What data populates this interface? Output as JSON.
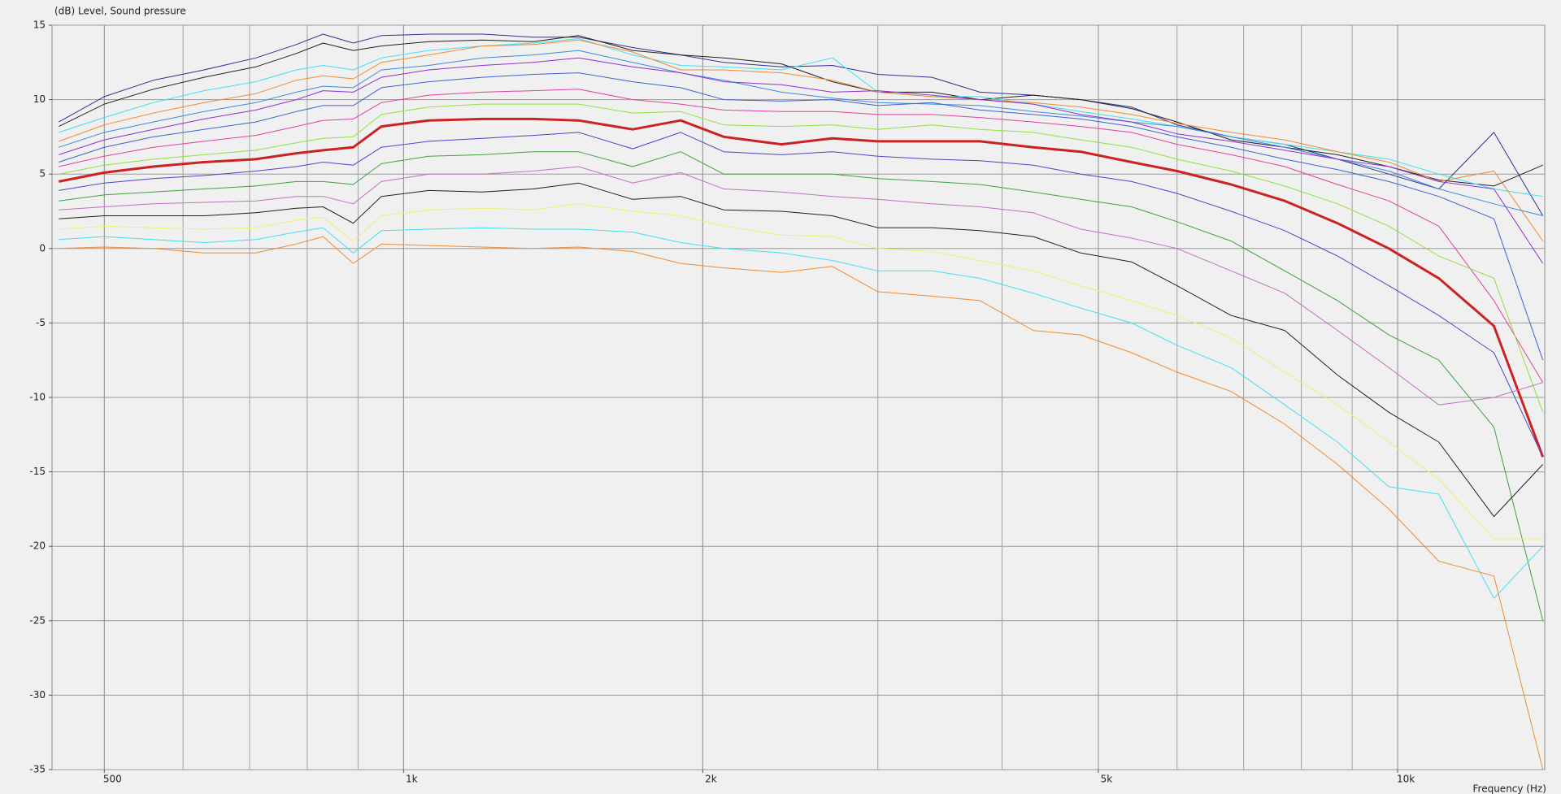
{
  "chart_data": {
    "type": "line",
    "title": "(dB)  Level, Sound pressure",
    "x_label": "Frequency  (Hz)",
    "x_scale": "log",
    "grid": true,
    "xlim": [
      443,
      14060
    ],
    "ylim": [
      -35,
      15
    ],
    "xticks": [
      500,
      {
        "value": 1000,
        "label": "1k"
      },
      {
        "value": 2000,
        "label": "2k"
      },
      {
        "value": 5000,
        "label": "5k"
      },
      {
        "value": 10000,
        "label": "10k"
      }
    ],
    "xminor": [
      600,
      700,
      800,
      900,
      3000,
      4000,
      6000,
      7000,
      8000,
      9000
    ],
    "yticks": [
      15,
      10,
      5,
      0,
      -5,
      -10,
      -15,
      -20,
      -25,
      -30,
      -35
    ],
    "x": [
      450,
      500,
      560,
      630,
      710,
      780,
      830,
      890,
      950,
      1060,
      1200,
      1350,
      1500,
      1700,
      1900,
      2100,
      2400,
      2700,
      3000,
      3400,
      3800,
      4300,
      4800,
      5400,
      6000,
      6800,
      7700,
      8700,
      9800,
      11000,
      12500,
      14000
    ],
    "series": [
      {
        "color": "#303090",
        "width": 1,
        "values": [
          8.5,
          10.2,
          11.3,
          12.0,
          12.8,
          13.7,
          14.4,
          13.8,
          14.3,
          14.4,
          14.4,
          14.2,
          14.2,
          13.5,
          13.0,
          12.5,
          12.2,
          12.3,
          11.7,
          11.5,
          10.5,
          10.3,
          10.0,
          9.5,
          8.3,
          7.5,
          7.0,
          6.0,
          5.0,
          4.0,
          7.8,
          2.2
        ]
      },
      {
        "color": "#202020",
        "width": 1,
        "values": [
          8.2,
          9.7,
          10.7,
          11.5,
          12.2,
          13.1,
          13.8,
          13.3,
          13.6,
          13.9,
          14.0,
          13.9,
          14.3,
          13.3,
          13.0,
          12.8,
          12.4,
          11.2,
          10.5,
          10.5,
          10.0,
          10.3,
          10.0,
          9.4,
          8.5,
          7.3,
          6.8,
          6.3,
          5.5,
          4.6,
          4.2,
          5.6
        ]
      },
      {
        "color": "#40e0f0",
        "width": 1,
        "values": [
          7.8,
          8.8,
          9.8,
          10.6,
          11.2,
          12.0,
          12.3,
          12.0,
          12.8,
          13.3,
          13.6,
          13.8,
          14.1,
          13.0,
          12.3,
          12.2,
          12.0,
          12.8,
          10.5,
          10.2,
          10.2,
          9.7,
          9.2,
          8.7,
          8.2,
          7.5,
          7.0,
          6.5,
          6.0,
          5.0,
          4.0,
          3.5
        ]
      },
      {
        "color": "#f08a30",
        "width": 1,
        "values": [
          7.2,
          8.3,
          9.1,
          9.8,
          10.4,
          11.3,
          11.6,
          11.4,
          12.5,
          13.0,
          13.6,
          13.7,
          14.0,
          13.2,
          12.0,
          12.0,
          11.8,
          11.3,
          10.5,
          10.2,
          10.0,
          9.8,
          9.5,
          9.0,
          8.4,
          7.8,
          7.3,
          6.5,
          5.8,
          4.5,
          5.2,
          0.5
        ]
      },
      {
        "color": "#3a8cd8",
        "width": 1,
        "values": [
          6.8,
          7.8,
          8.5,
          9.2,
          9.8,
          10.5,
          10.9,
          10.8,
          12.0,
          12.3,
          12.8,
          13.0,
          13.3,
          12.5,
          11.8,
          11.3,
          10.5,
          10.1,
          9.8,
          9.7,
          9.6,
          9.2,
          8.9,
          8.5,
          8.2,
          7.5,
          6.8,
          6.0,
          5.2,
          4.0,
          3.0,
          2.2
        ]
      },
      {
        "color": "#9030d0",
        "width": 1,
        "values": [
          6.3,
          7.3,
          8.0,
          8.7,
          9.3,
          10.0,
          10.6,
          10.5,
          11.5,
          12.0,
          12.3,
          12.5,
          12.8,
          12.2,
          11.8,
          11.2,
          11.0,
          10.5,
          10.6,
          10.3,
          10.0,
          9.7,
          9.0,
          8.5,
          7.7,
          7.2,
          6.6,
          6.0,
          5.5,
          4.5,
          4.0,
          -1
        ]
      },
      {
        "color": "#4060d0",
        "width": 1,
        "values": [
          5.8,
          6.8,
          7.5,
          8.0,
          8.5,
          9.2,
          9.6,
          9.6,
          10.8,
          11.2,
          11.5,
          11.7,
          11.8,
          11.2,
          10.8,
          10.0,
          9.9,
          10.0,
          9.6,
          9.8,
          9.3,
          9.0,
          8.7,
          8.2,
          7.5,
          6.8,
          6.0,
          5.3,
          4.5,
          3.5,
          2.0,
          -7.5
        ]
      },
      {
        "color": "#e040a0",
        "width": 1,
        "values": [
          5.5,
          6.2,
          6.8,
          7.2,
          7.6,
          8.2,
          8.6,
          8.7,
          9.8,
          10.3,
          10.5,
          10.6,
          10.7,
          10.0,
          9.7,
          9.3,
          9.2,
          9.2,
          9.0,
          9.0,
          8.8,
          8.5,
          8.2,
          7.8,
          7.0,
          6.3,
          5.5,
          4.3,
          3.2,
          1.5,
          -3.5,
          -9
        ]
      },
      {
        "color": "#90e040",
        "width": 1,
        "values": [
          5.0,
          5.6,
          6.0,
          6.3,
          6.6,
          7.1,
          7.4,
          7.5,
          9.0,
          9.5,
          9.7,
          9.7,
          9.7,
          9.1,
          9.2,
          8.3,
          8.2,
          8.3,
          8.0,
          8.3,
          8.0,
          7.8,
          7.3,
          6.8,
          6.0,
          5.2,
          4.2,
          3.0,
          1.5,
          -0.5,
          -2.0,
          -11
        ]
      },
      {
        "color": "#cc2222",
        "width": 3,
        "values": [
          4.5,
          5.1,
          5.5,
          5.8,
          6.0,
          6.4,
          6.6,
          6.8,
          8.2,
          8.6,
          8.7,
          8.7,
          8.6,
          8.0,
          8.6,
          7.5,
          7.0,
          7.4,
          7.2,
          7.2,
          7.2,
          6.8,
          6.5,
          5.8,
          5.2,
          4.3,
          3.2,
          1.7,
          0,
          -2,
          -5.2,
          -14
        ]
      },
      {
        "color": "#4848c8",
        "width": 1,
        "values": [
          3.9,
          4.4,
          4.7,
          4.9,
          5.2,
          5.5,
          5.8,
          5.6,
          6.8,
          7.2,
          7.4,
          7.6,
          7.8,
          6.7,
          7.8,
          6.5,
          6.3,
          6.5,
          6.2,
          6.0,
          5.9,
          5.6,
          5.0,
          4.5,
          3.7,
          2.5,
          1.2,
          -0.5,
          -2.5,
          -4.5,
          -7,
          -14
        ]
      },
      {
        "color": "#40a040",
        "width": 1,
        "values": [
          3.2,
          3.6,
          3.8,
          4.0,
          4.2,
          4.5,
          4.5,
          4.3,
          5.7,
          6.2,
          6.3,
          6.5,
          6.5,
          5.5,
          6.5,
          5.0,
          5.0,
          5.0,
          4.7,
          4.5,
          4.3,
          3.8,
          3.3,
          2.8,
          1.8,
          0.5,
          -1.5,
          -3.5,
          -5.8,
          -7.5,
          -12,
          -25
        ]
      },
      {
        "color": "#c070c0",
        "width": 1,
        "values": [
          2.6,
          2.8,
          3.0,
          3.1,
          3.2,
          3.5,
          3.5,
          3.0,
          4.5,
          5.0,
          5.0,
          5.2,
          5.5,
          4.4,
          5.1,
          4.0,
          3.8,
          3.5,
          3.3,
          3.0,
          2.8,
          2.4,
          1.3,
          0.7,
          0,
          -1.5,
          -3,
          -5.5,
          -8,
          -10.5,
          -10,
          -9
        ]
      },
      {
        "color": "#202020",
        "width": 1,
        "values": [
          2.0,
          2.2,
          2.2,
          2.2,
          2.4,
          2.7,
          2.8,
          1.7,
          3.5,
          3.9,
          3.8,
          4.0,
          4.4,
          3.3,
          3.5,
          2.6,
          2.5,
          2.2,
          1.4,
          1.4,
          1.2,
          0.8,
          -0.3,
          -0.9,
          -2.5,
          -4.5,
          -5.5,
          -8.5,
          -11,
          -13,
          -18,
          -14.5
        ]
      },
      {
        "color": "#f0f070",
        "width": 1,
        "values": [
          1.3,
          1.5,
          1.4,
          1.3,
          1.4,
          1.9,
          2.1,
          0.5,
          2.2,
          2.6,
          2.7,
          2.6,
          3.0,
          2.5,
          2.2,
          1.5,
          0.9,
          0.8,
          0,
          -0.2,
          -0.8,
          -1.5,
          -2.5,
          -3.5,
          -4.5,
          -6,
          -8.3,
          -10.5,
          -13,
          -15.5,
          -19.5,
          -19.5
        ]
      },
      {
        "color": "#40e0f0",
        "width": 1,
        "values": [
          0.6,
          0.8,
          0.6,
          0.4,
          0.6,
          1.1,
          1.4,
          -0.3,
          1.2,
          1.3,
          1.4,
          1.3,
          1.3,
          1.1,
          0.4,
          0,
          -0.3,
          -0.8,
          -1.5,
          -1.5,
          -2,
          -3,
          -4,
          -5,
          -6.5,
          -8,
          -10.5,
          -13,
          -16,
          -16.5,
          -23.5,
          -20
        ]
      },
      {
        "color": "#f08a30",
        "width": 1,
        "values": [
          0.0,
          0.1,
          0,
          -0.3,
          -0.3,
          0.3,
          0.8,
          -1.0,
          0.3,
          0.2,
          0.1,
          0,
          0.1,
          -0.2,
          -1.0,
          -1.3,
          -1.6,
          -1.2,
          -2.9,
          -3.2,
          -3.5,
          -5.5,
          -5.8,
          -7,
          -8.3,
          -9.6,
          -11.8,
          -14.5,
          -17.5,
          -21,
          -22,
          -35
        ]
      }
    ]
  }
}
